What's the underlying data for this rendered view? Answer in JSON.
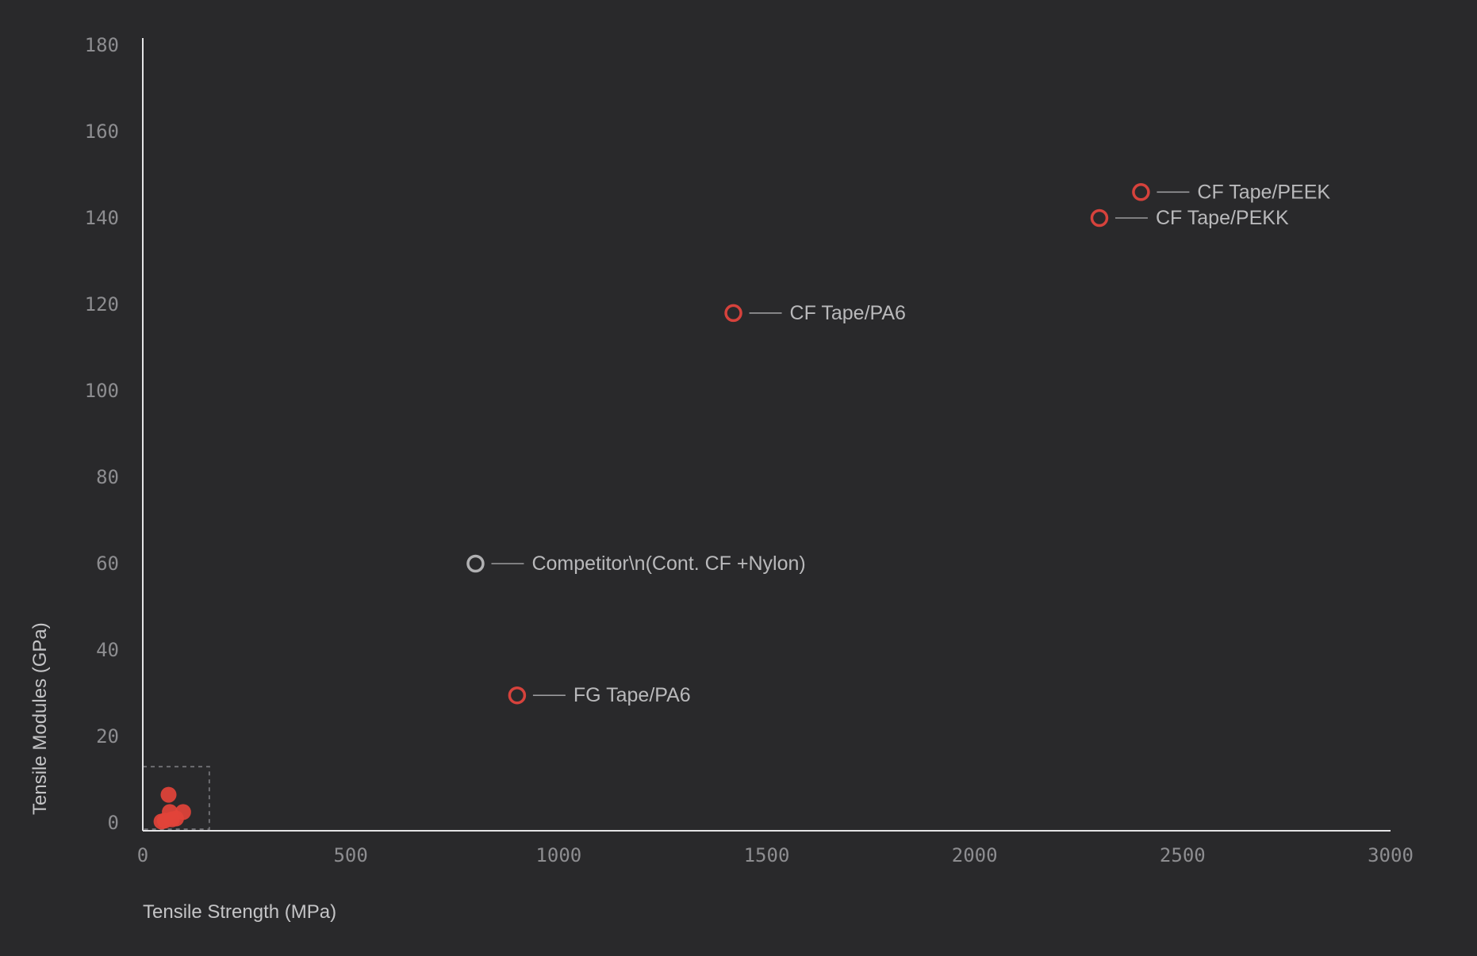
{
  "chart_data": {
    "type": "scatter",
    "title": "",
    "xlabel": "Tensile Strength (MPa)",
    "ylabel": "Tensile Modules (GPa)",
    "xlim": [
      0,
      3000
    ],
    "ylim": [
      0,
      180
    ],
    "xticks": [
      "0",
      "500",
      "1000",
      "1500",
      "2000",
      "2500",
      "3000"
    ],
    "yticks": [
      "0",
      "20",
      "40",
      "60",
      "80",
      "100",
      "120",
      "140",
      "160",
      "180"
    ],
    "grid": false,
    "colors": {
      "background": "#29292b",
      "highlight": "#d6423c",
      "competitor": "#b0b0b2",
      "cluster": "#e2433a",
      "axis": "#e4e4e6",
      "tick_text": "#8d8d90",
      "label_text": "#b9b9bb"
    },
    "labeled_points": [
      {
        "x": 2400,
        "y": 146,
        "label": "CF Tape/PEEK",
        "marker": "hollow",
        "color": "#d6423c"
      },
      {
        "x": 2300,
        "y": 140,
        "label": "CF Tape/PEKK",
        "marker": "hollow",
        "color": "#d6423c"
      },
      {
        "x": 1420,
        "y": 118,
        "label": "CF Tape/PA6",
        "marker": "hollow",
        "color": "#d6423c"
      },
      {
        "x": 800,
        "y": 60,
        "label": "Competitor\\n(Cont. CF +Nylon)",
        "marker": "hollow",
        "color": "#b0b0b2"
      },
      {
        "x": 900,
        "y": 29.5,
        "label": "FG Tape/PA6",
        "marker": "hollow",
        "color": "#d6423c"
      }
    ],
    "cluster_points": [
      {
        "x": 62,
        "y": 6.5
      },
      {
        "x": 65,
        "y": 2.5
      },
      {
        "x": 97,
        "y": 2.5
      },
      {
        "x": 80,
        "y": 1.0
      },
      {
        "x": 53,
        "y": 0.5
      },
      {
        "x": 70,
        "y": 0.8
      },
      {
        "x": 45,
        "y": 0.3
      }
    ],
    "cluster_box": {
      "x": [
        0,
        160
      ],
      "y": [
        0,
        13
      ]
    }
  }
}
